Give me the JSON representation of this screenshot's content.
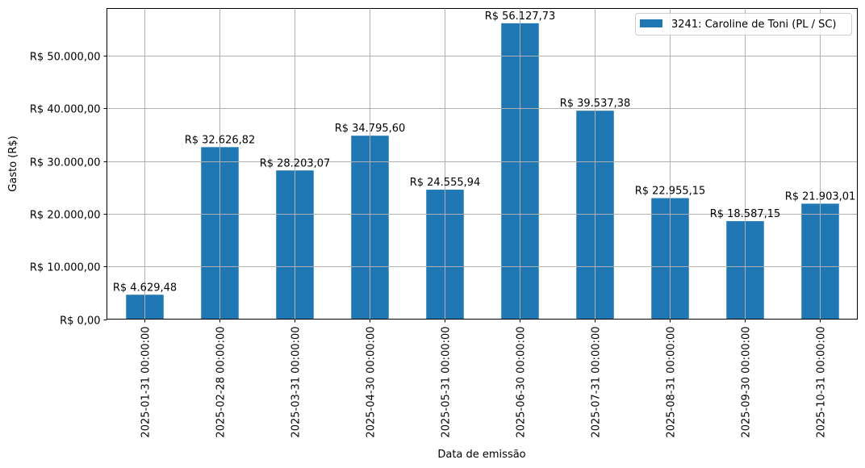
{
  "chart_data": {
    "type": "bar",
    "title": "",
    "xlabel": "Data de emissão",
    "ylabel": "Gasto (R$)",
    "ylim": [
      0,
      58934
    ],
    "grid": true,
    "legend_position": "upper right",
    "bar_color": "#1f77b4",
    "categories": [
      "2025-01-31 00:00:00",
      "2025-02-28 00:00:00",
      "2025-03-31 00:00:00",
      "2025-04-30 00:00:00",
      "2025-05-31 00:00:00",
      "2025-06-30 00:00:00",
      "2025-07-31 00:00:00",
      "2025-08-31 00:00:00",
      "2025-09-30 00:00:00",
      "2025-10-31 00:00:00"
    ],
    "series": [
      {
        "name": "3241: Caroline de Toni (PL / SC)",
        "values": [
          4629.48,
          32626.82,
          28203.07,
          34795.6,
          24555.94,
          56127.73,
          39537.38,
          22955.15,
          18587.15,
          21903.01
        ],
        "labels": [
          "R$ 4.629,48",
          "R$ 32.626,82",
          "R$ 28.203,07",
          "R$ 34.795,60",
          "R$ 24.555,94",
          "R$ 56.127,73",
          "R$ 39.537,38",
          "R$ 22.955,15",
          "R$ 18.587,15",
          "R$ 21.903,01"
        ]
      }
    ],
    "yticks": [
      0,
      10000,
      20000,
      30000,
      40000,
      50000
    ],
    "ytick_labels": [
      "R$ 0,00",
      "R$ 10.000,00",
      "R$ 20.000,00",
      "R$ 30.000,00",
      "R$ 40.000,00",
      "R$ 50.000,00"
    ]
  }
}
